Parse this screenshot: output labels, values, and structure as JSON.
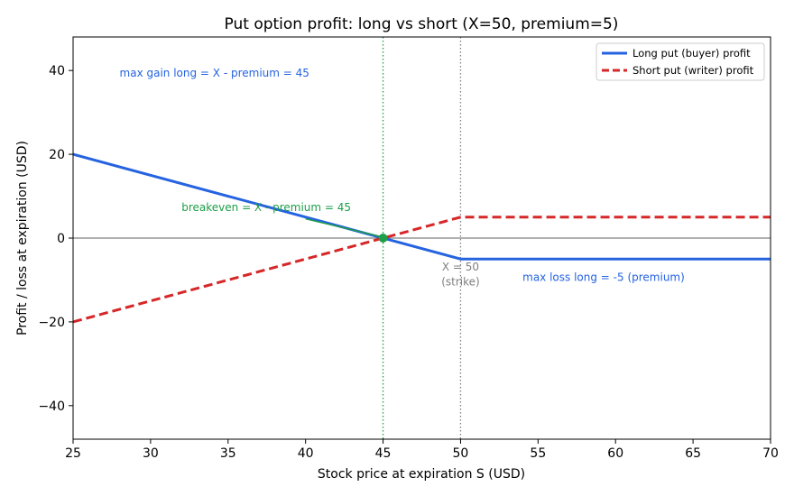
{
  "chart_data": {
    "type": "line",
    "title": "Put option profit: long vs short (X=50, premium=5)",
    "xlabel": "Stock price at expiration S (USD)",
    "ylabel": "Profit / loss at expiration (USD)",
    "xlim": [
      25,
      70
    ],
    "ylim": [
      -48,
      48
    ],
    "x_ticks": [
      25,
      30,
      35,
      40,
      45,
      50,
      55,
      60,
      65,
      70
    ],
    "y_ticks": [
      -40,
      -20,
      0,
      20,
      40
    ],
    "y_tick_labels": [
      "−40",
      "−20",
      "0",
      "20",
      "40"
    ],
    "grid": false,
    "legend_position": "top-right",
    "series": [
      {
        "name": "Long put (buyer) profit",
        "color": "#2563e0",
        "style": "solid",
        "x": [
          25,
          50,
          70
        ],
        "y": [
          20,
          -5,
          -5
        ]
      },
      {
        "name": "Short put (writer) profit",
        "color": "#d62728",
        "style": "dashed",
        "x": [
          25,
          50,
          70
        ],
        "y": [
          -20,
          5,
          5
        ]
      }
    ],
    "reference_lines": [
      {
        "orientation": "horizontal",
        "value": 0,
        "color": "#808080",
        "style": "solid"
      },
      {
        "orientation": "vertical",
        "value": 50,
        "color": "#808080",
        "style": "dotted"
      },
      {
        "orientation": "vertical",
        "value": 45,
        "color": "#1e9e48",
        "style": "dotted"
      }
    ],
    "breakeven_point": {
      "x": 45,
      "y": 0,
      "color": "#1e9e48"
    },
    "annotations": [
      {
        "text": "max gain long = X - premium = 45",
        "x": 28,
        "y": 38.5,
        "color": "#2563e0",
        "anchor": "start"
      },
      {
        "text": "breakeven = X - premium = 45",
        "x": 32,
        "y": 6.5,
        "color": "#1e9e48",
        "anchor": "start",
        "arrow_to": [
          45,
          0
        ]
      },
      {
        "text": "max loss long = -5 (premium)",
        "x": 54,
        "y": -10.2,
        "color": "#2563e0",
        "anchor": "start"
      },
      {
        "text": "X = 50",
        "x": 50,
        "y": -7.8,
        "color": "#808080",
        "anchor": "middle"
      },
      {
        "text": "(strike)",
        "x": 50,
        "y": -11.3,
        "color": "#808080",
        "anchor": "middle"
      }
    ]
  }
}
